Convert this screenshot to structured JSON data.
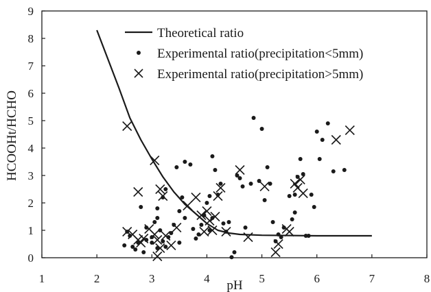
{
  "chart_data": {
    "type": "scatter",
    "title": "",
    "xlabel": "pH",
    "ylabel": "HCOOHt/HCHO",
    "xlim": [
      1,
      8
    ],
    "ylim": [
      0,
      9
    ],
    "xticks": [
      "1",
      "2",
      "3",
      "4",
      "5",
      "6",
      "7",
      "8"
    ],
    "yticks": [
      "0",
      "1",
      "2",
      "3",
      "4",
      "5",
      "6",
      "7",
      "8",
      "9"
    ],
    "grid": false,
    "legend_position": "top-right",
    "series": [
      {
        "name": "Theoretical ratio",
        "kind": "line",
        "x": [
          2.0,
          2.2,
          2.4,
          2.6,
          2.8,
          3.0,
          3.2,
          3.4,
          3.6,
          3.8,
          4.0,
          4.2,
          4.4,
          4.6,
          5.0,
          6.0,
          7.0
        ],
        "y": [
          8.3,
          7.25,
          6.2,
          5.1,
          4.3,
          3.6,
          2.95,
          2.4,
          1.95,
          1.6,
          1.25,
          1.0,
          0.9,
          0.85,
          0.82,
          0.8,
          0.8
        ]
      },
      {
        "name": "Experimental ratio(precipitation<5mm)",
        "kind": "dot",
        "x": [
          2.5,
          2.6,
          2.7,
          2.75,
          2.8,
          2.85,
          2.9,
          2.9,
          3.0,
          3.05,
          3.1,
          3.1,
          3.15,
          3.2,
          3.25,
          3.3,
          3.4,
          3.45,
          3.5,
          3.6,
          3.7,
          3.75,
          3.8,
          3.9,
          3.95,
          4.0,
          4.05,
          4.1,
          4.1,
          4.15,
          4.2,
          4.3,
          4.35,
          4.4,
          4.45,
          4.5,
          4.6,
          4.7,
          4.8,
          4.85,
          4.95,
          5.0,
          5.05,
          5.1,
          5.15,
          5.2,
          5.25,
          5.3,
          5.35,
          5.4,
          5.5,
          5.55,
          5.6,
          5.6,
          5.65,
          5.7,
          5.75,
          5.8,
          5.85,
          5.9,
          5.95,
          6.0,
          6.05,
          6.1,
          6.2,
          6.3,
          6.5,
          2.55,
          2.65,
          3.0,
          3.1,
          3.2,
          3.25,
          3.35,
          3.5,
          3.55,
          3.6,
          3.85,
          4.05,
          4.25,
          4.55,
          4.65
        ],
        "y": [
          0.45,
          0.8,
          0.3,
          0.55,
          1.85,
          0.2,
          1.1,
          0.65,
          0.55,
          1.3,
          1.8,
          0.35,
          1.0,
          2.2,
          0.4,
          0.75,
          1.2,
          3.3,
          0.55,
          1.45,
          3.4,
          1.05,
          0.7,
          1.2,
          1.55,
          2.0,
          2.25,
          1.45,
          3.7,
          3.2,
          2.3,
          1.25,
          0.95,
          1.3,
          0.02,
          0.2,
          2.9,
          1.1,
          2.7,
          5.1,
          2.8,
          4.7,
          2.1,
          3.3,
          2.7,
          1.3,
          0.6,
          0.85,
          0.75,
          1.1,
          2.25,
          1.4,
          1.65,
          2.3,
          2.95,
          3.6,
          3.05,
          0.8,
          0.8,
          2.3,
          1.85,
          4.6,
          3.6,
          4.3,
          4.9,
          3.15,
          3.2,
          0.95,
          0.4,
          0.75,
          1.45,
          0.6,
          2.5,
          0.9,
          1.7,
          2.2,
          3.5,
          0.85,
          1.0,
          2.7,
          3.0,
          2.6
        ],
        "marker": "dot"
      },
      {
        "name": "Experimental ratio(precipitation>5mm)",
        "kind": "cross",
        "x": [
          2.55,
          2.55,
          2.65,
          2.75,
          2.8,
          2.85,
          2.95,
          3.05,
          3.1,
          3.1,
          3.15,
          3.2,
          3.25,
          3.35,
          3.45,
          3.65,
          3.8,
          3.9,
          3.95,
          4.0,
          4.05,
          4.1,
          4.15,
          4.2,
          4.25,
          4.35,
          4.6,
          4.75,
          5.05,
          5.25,
          5.3,
          5.45,
          5.6,
          5.7,
          5.75,
          6.35,
          6.6,
          2.75,
          3.05,
          3.15,
          5.5,
          5.65
        ],
        "y": [
          4.8,
          0.95,
          0.85,
          2.4,
          0.55,
          0.7,
          1.05,
          3.55,
          0.65,
          0.05,
          2.5,
          2.25,
          0.8,
          0.45,
          1.1,
          1.9,
          2.2,
          1.55,
          0.95,
          1.7,
          1.35,
          1.0,
          1.5,
          2.25,
          2.55,
          0.95,
          3.2,
          0.75,
          2.6,
          0.2,
          0.5,
          1.05,
          2.7,
          2.85,
          2.35,
          4.3,
          4.65,
          0.65,
          0.85,
          0.35,
          0.95,
          2.55
        ],
        "marker": "x"
      }
    ]
  }
}
